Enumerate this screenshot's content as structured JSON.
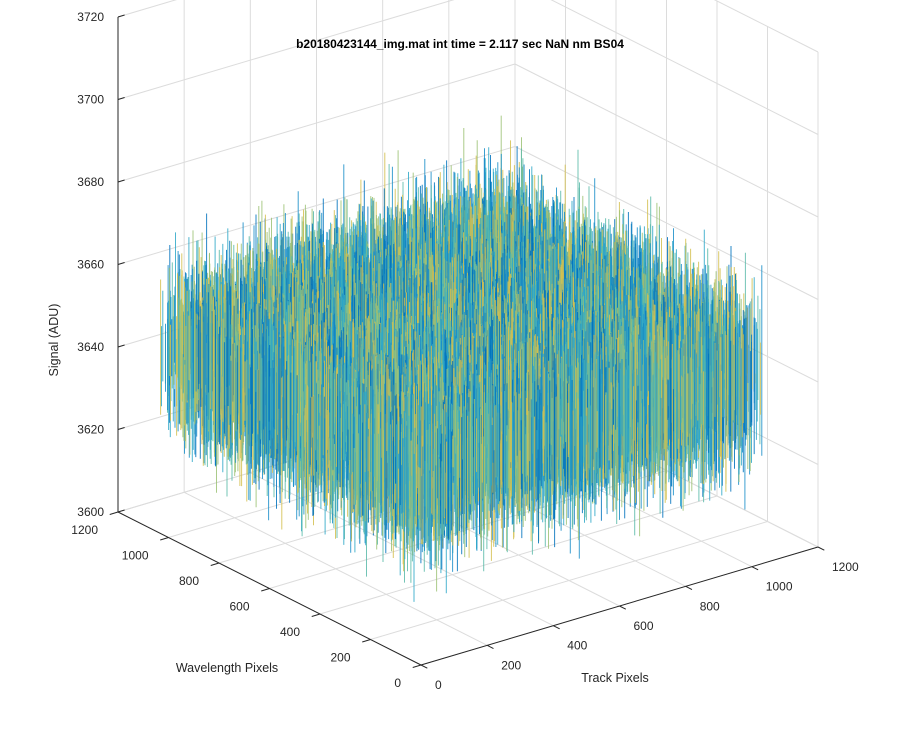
{
  "chart_data": {
    "type": "surface",
    "title": "b20180423144_img.mat int time = 2.117 sec  NaN nm BS04",
    "xlabel": "Track Pixels",
    "ylabel": "Wavelength Pixels",
    "zlabel": "Signal (ADU)",
    "xlim": [
      0,
      1200
    ],
    "ylim": [
      0,
      1200
    ],
    "zlim": [
      3600,
      3720
    ],
    "xticks": [
      "0",
      "200",
      "400",
      "600",
      "800",
      "1000",
      "1200"
    ],
    "yticks": [
      "0",
      "200",
      "400",
      "600",
      "800",
      "1000",
      "1200"
    ],
    "zticks": [
      "3600",
      "3620",
      "3640",
      "3660",
      "3680",
      "3700",
      "3720"
    ],
    "surface_extent": {
      "x": [
        0,
        1024
      ],
      "y": [
        0,
        1024
      ]
    },
    "signal_mean": 3645,
    "signal_range": [
      3610,
      3705
    ],
    "grid": true,
    "colormap": [
      "#0072bd",
      "#1a8ec9",
      "#2fa8c8",
      "#5bbaa9",
      "#9cc275",
      "#d3bf4f"
    ]
  }
}
